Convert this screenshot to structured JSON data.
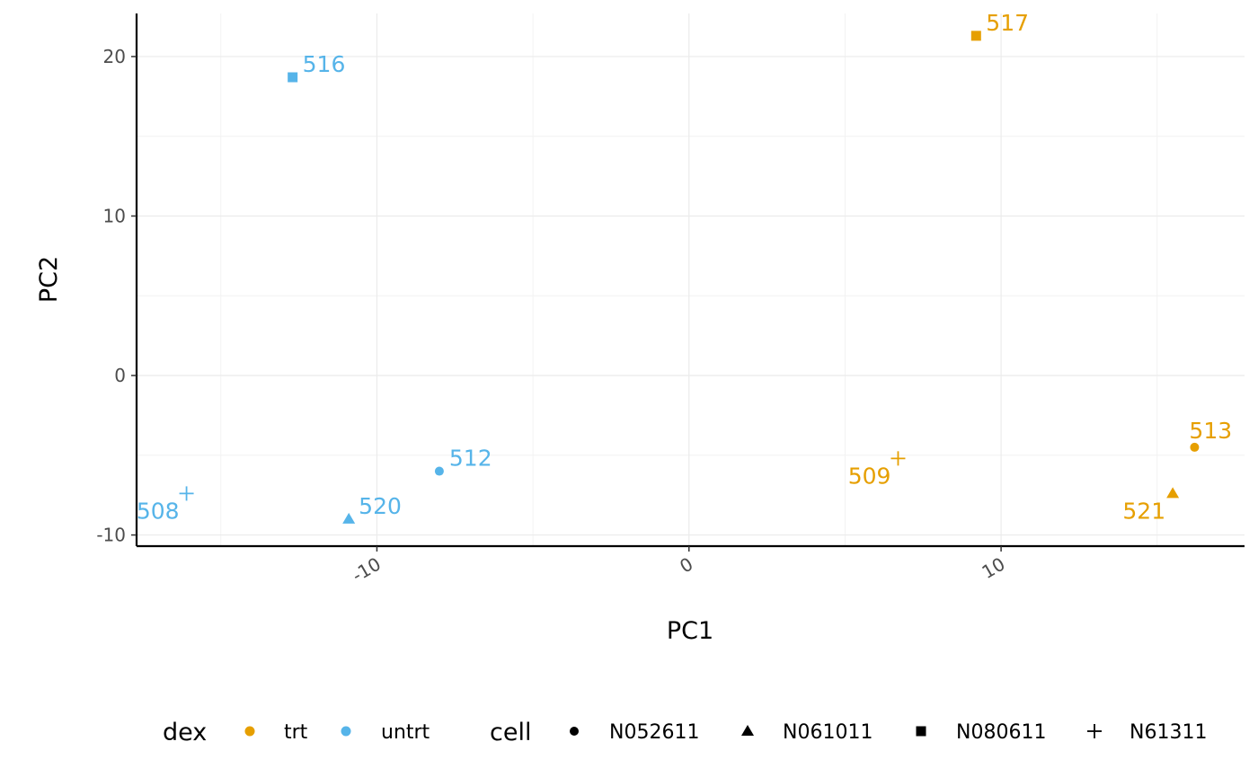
{
  "chart_data": {
    "type": "scatter",
    "xlabel": "PC1",
    "ylabel": "PC2",
    "xlim": [
      -17.7,
      17.8
    ],
    "ylim": [
      -10.7,
      22.7
    ],
    "xticks": [
      {
        "value": -10,
        "label": "-10"
      },
      {
        "value": 0,
        "label": "0"
      },
      {
        "value": 10,
        "label": "10"
      }
    ],
    "yticks": [
      {
        "value": -10,
        "label": "-10"
      },
      {
        "value": 0,
        "label": "0"
      },
      {
        "value": 10,
        "label": "10"
      },
      {
        "value": 20,
        "label": "20"
      }
    ],
    "grid": true,
    "colors": {
      "trt": "#E69F00",
      "untrt": "#56B4E9"
    },
    "points": [
      {
        "label": "516",
        "x": -12.7,
        "y": 18.7,
        "dex": "untrt",
        "cell": "N080611",
        "label_pos": "right"
      },
      {
        "label": "517",
        "x": 9.2,
        "y": 21.3,
        "dex": "trt",
        "cell": "N080611",
        "label_pos": "right"
      },
      {
        "label": "512",
        "x": -8.0,
        "y": -6.0,
        "dex": "untrt",
        "cell": "N052611",
        "label_pos": "right"
      },
      {
        "label": "520",
        "x": -10.9,
        "y": -9.0,
        "dex": "untrt",
        "cell": "N061011",
        "label_pos": "right"
      },
      {
        "label": "508",
        "x": -16.1,
        "y": -7.4,
        "dex": "untrt",
        "cell": "N61311",
        "label_pos": "below-left"
      },
      {
        "label": "509",
        "x": 6.7,
        "y": -5.2,
        "dex": "trt",
        "cell": "N61311",
        "label_pos": "below-left"
      },
      {
        "label": "513",
        "x": 16.2,
        "y": -4.5,
        "dex": "trt",
        "cell": "N052611",
        "label_pos": "above"
      },
      {
        "label": "521",
        "x": 15.5,
        "y": -7.4,
        "dex": "trt",
        "cell": "N061011",
        "label_pos": "below-left"
      }
    ],
    "legend": {
      "position": "bottom",
      "dex": {
        "title": "dex",
        "entries": [
          {
            "key": "trt",
            "label": "trt"
          },
          {
            "key": "untrt",
            "label": "untrt"
          }
        ]
      },
      "cell": {
        "title": "cell",
        "entries": [
          {
            "key": "N052611",
            "label": "N052611",
            "shape": "circle"
          },
          {
            "key": "N061011",
            "label": "N061011",
            "shape": "triangle"
          },
          {
            "key": "N080611",
            "label": "N080611",
            "shape": "square"
          },
          {
            "key": "N61311",
            "label": "N61311",
            "shape": "plus"
          }
        ]
      }
    }
  }
}
